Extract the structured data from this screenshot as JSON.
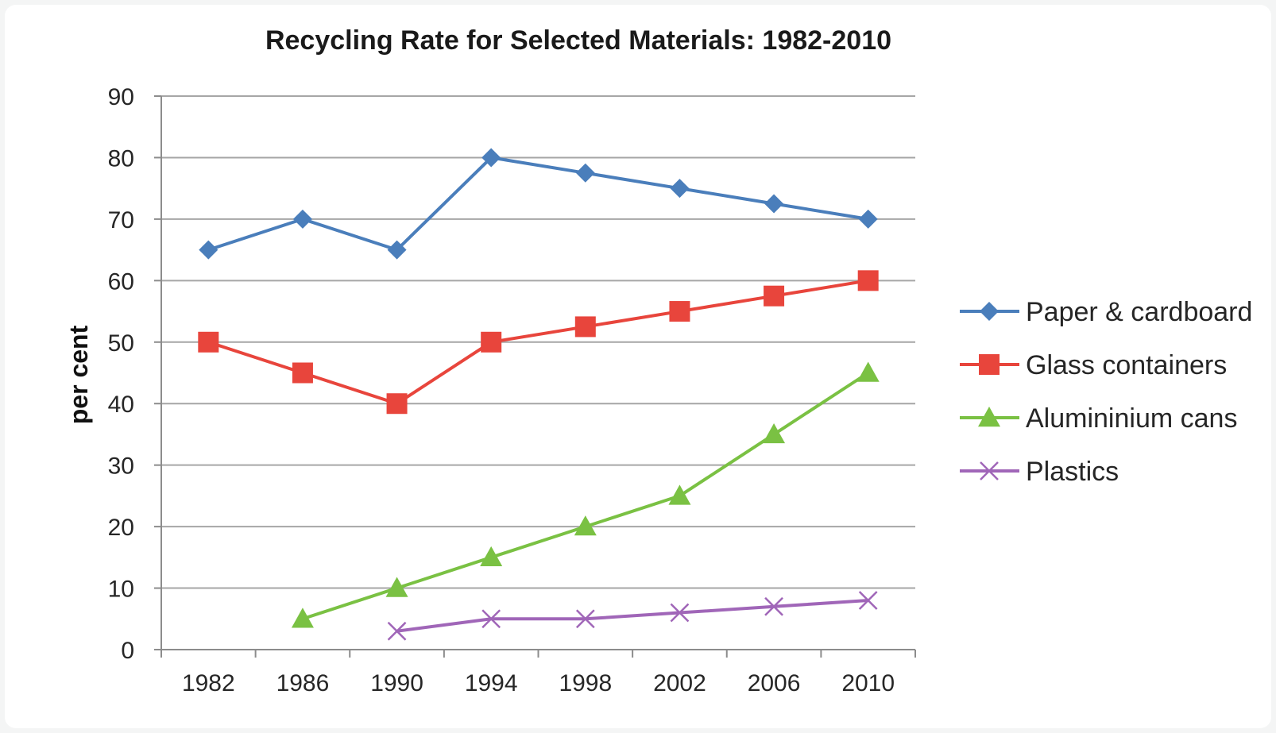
{
  "chart_data": {
    "type": "line",
    "title": "Recycling Rate for Selected Materials: 1982-2010",
    "xlabel": "",
    "ylabel": "per cent",
    "categories": [
      "1982",
      "1986",
      "1990",
      "1994",
      "1998",
      "2002",
      "2006",
      "2010"
    ],
    "ylim": [
      0,
      90
    ],
    "yticks": [
      "0",
      "10",
      "20",
      "30",
      "40",
      "50",
      "60",
      "70",
      "80",
      "90"
    ],
    "grid": "horizontal",
    "legend_position": "right",
    "series": [
      {
        "name": "Paper & cardboard",
        "values": [
          65,
          70,
          65,
          80,
          77.5,
          75,
          72.5,
          70
        ],
        "color": "#4a7ebb",
        "marker": "diamond"
      },
      {
        "name": "Glass containers",
        "values": [
          50,
          45,
          40,
          50,
          52.5,
          55,
          57.5,
          60
        ],
        "color": "#e8453c",
        "marker": "square"
      },
      {
        "name": "Alumininium cans",
        "values": [
          null,
          5,
          10,
          15,
          20,
          25,
          35,
          45
        ],
        "color": "#7ac143",
        "marker": "triangle"
      },
      {
        "name": "Plastics",
        "values": [
          null,
          null,
          3,
          5,
          5,
          6,
          7,
          8
        ],
        "color": "#a066b8",
        "marker": "x"
      }
    ]
  }
}
